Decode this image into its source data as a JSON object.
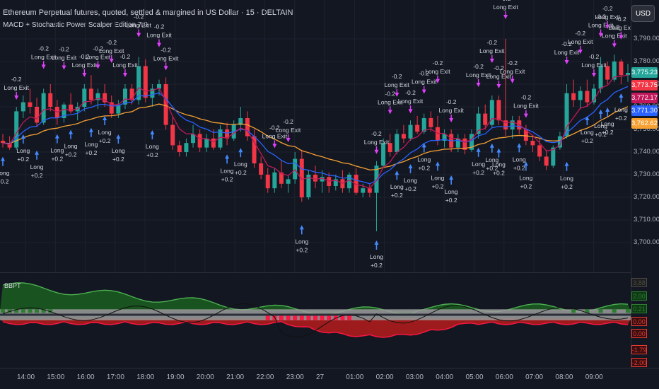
{
  "chart_title": "Ethereum Perpetual futures, quoted, settled & margined in US Dollar · 15 · DELTAIN",
  "indicator_name": "MACD + Stochastic Power Scalper Edition 7.0",
  "currency_button": "USD",
  "sub_indicator": "BBPT",
  "price_ticks": [
    "3,790.00",
    "3,780.00",
    "3,770.00",
    "3,760.00",
    "3,750.00",
    "3,740.00",
    "3,730.00",
    "3,720.00",
    "3,710.00",
    "3,700.00"
  ],
  "price_tags": [
    {
      "label": "3,775.23",
      "color": "#26a69a"
    },
    {
      "label": "3,773.75",
      "color": "#f23645"
    },
    {
      "label": "3,772.17",
      "color": "#c2185b"
    },
    {
      "label": "3,771.30",
      "color": "#2962ff"
    },
    {
      "label": "3,762.62",
      "color": "#f7a133"
    }
  ],
  "osc_tags": [
    {
      "label": "3.88",
      "color": "#4a4a4a",
      "bg": "#1e1e1e"
    },
    {
      "label": "2.00",
      "color": "#2e7d32",
      "bg": "#0e3a14"
    },
    {
      "label": "0.21",
      "color": "#2e7d32",
      "bg": "#0e3a14"
    },
    {
      "label": "0.00",
      "color": "#e53935",
      "bg": "#3a0e0e"
    },
    {
      "label": "0.00",
      "color": "#e53935",
      "bg": "#3a0e0e"
    },
    {
      "label": "-1.79",
      "color": "#e53935",
      "bg": "#3a0e0e"
    },
    {
      "label": "-2.00",
      "color": "#e53935",
      "bg": "#3a0e0e"
    }
  ],
  "time_ticks": [
    "14:00",
    "15:00",
    "16:00",
    "17:00",
    "18:00",
    "19:00",
    "20:00",
    "21:00",
    "22:00",
    "23:00",
    "27",
    "01:00",
    "02:00",
    "03:00",
    "04:00",
    "05:00",
    "06:00",
    "07:00",
    "08:00",
    "09:00"
  ],
  "signals": {
    "exit_label": "Long Exit",
    "exit_value": "-0.2",
    "entry_label": "Long",
    "entry_value": "+0.2"
  },
  "chart_data": {
    "type": "candlestick",
    "symbol": "ETH perpetual",
    "interval": "15",
    "ylim": [
      3700,
      3795
    ],
    "candles": [
      [
        3745,
        3748,
        3742,
        3744
      ],
      [
        3744,
        3747,
        3741,
        3742
      ],
      [
        3742,
        3760,
        3741,
        3758
      ],
      [
        3758,
        3765,
        3755,
        3762
      ],
      [
        3762,
        3768,
        3757,
        3760
      ],
      [
        3760,
        3764,
        3751,
        3753
      ],
      [
        3753,
        3768,
        3752,
        3766
      ],
      [
        3766,
        3770,
        3758,
        3760
      ],
      [
        3760,
        3763,
        3752,
        3755
      ],
      [
        3755,
        3762,
        3753,
        3761
      ],
      [
        3761,
        3766,
        3757,
        3758
      ],
      [
        3758,
        3762,
        3754,
        3760
      ],
      [
        3760,
        3770,
        3758,
        3768
      ],
      [
        3768,
        3774,
        3761,
        3763
      ],
      [
        3763,
        3768,
        3759,
        3766
      ],
      [
        3766,
        3770,
        3760,
        3762
      ],
      [
        3762,
        3765,
        3755,
        3757
      ],
      [
        3757,
        3763,
        3755,
        3761
      ],
      [
        3761,
        3770,
        3759,
        3768
      ],
      [
        3768,
        3770,
        3761,
        3763
      ],
      [
        3763,
        3782,
        3761,
        3778
      ],
      [
        3778,
        3781,
        3762,
        3764
      ],
      [
        3764,
        3770,
        3760,
        3768
      ],
      [
        3768,
        3772,
        3765,
        3770
      ],
      [
        3770,
        3773,
        3750,
        3752
      ],
      [
        3752,
        3756,
        3741,
        3743
      ],
      [
        3743,
        3745,
        3738,
        3740
      ],
      [
        3740,
        3746,
        3738,
        3744
      ],
      [
        3744,
        3752,
        3742,
        3748
      ],
      [
        3748,
        3750,
        3740,
        3742
      ],
      [
        3742,
        3748,
        3740,
        3746
      ],
      [
        3746,
        3750,
        3741,
        3742
      ],
      [
        3742,
        3752,
        3741,
        3750
      ],
      [
        3750,
        3753,
        3743,
        3746
      ],
      [
        3746,
        3754,
        3745,
        3752
      ],
      [
        3752,
        3760,
        3749,
        3755
      ],
      [
        3755,
        3758,
        3745,
        3747
      ],
      [
        3747,
        3750,
        3733,
        3735
      ],
      [
        3735,
        3738,
        3728,
        3730
      ],
      [
        3730,
        3733,
        3722,
        3724
      ],
      [
        3724,
        3733,
        3722,
        3731
      ],
      [
        3731,
        3736,
        3724,
        3726
      ],
      [
        3726,
        3730,
        3722,
        3728
      ],
      [
        3728,
        3740,
        3726,
        3737
      ],
      [
        3737,
        3741,
        3718,
        3720
      ],
      [
        3720,
        3732,
        3719,
        3730
      ],
      [
        3730,
        3734,
        3724,
        3727
      ],
      [
        3727,
        3732,
        3722,
        3729
      ],
      [
        3729,
        3731,
        3722,
        3725
      ],
      [
        3725,
        3730,
        3723,
        3728
      ],
      [
        3728,
        3732,
        3722,
        3724
      ],
      [
        3724,
        3731,
        3722,
        3730
      ],
      [
        3730,
        3733,
        3721,
        3722
      ],
      [
        3722,
        3726,
        3720,
        3724
      ],
      [
        3724,
        3726,
        3720,
        3722
      ],
      [
        3722,
        3736,
        3705,
        3734
      ],
      [
        3734,
        3746,
        3733,
        3744
      ],
      [
        3744,
        3748,
        3738,
        3740
      ],
      [
        3740,
        3750,
        3739,
        3748
      ],
      [
        3748,
        3752,
        3744,
        3746
      ],
      [
        3746,
        3754,
        3745,
        3752
      ],
      [
        3752,
        3756,
        3748,
        3749
      ],
      [
        3749,
        3757,
        3748,
        3755
      ],
      [
        3755,
        3758,
        3749,
        3751
      ],
      [
        3751,
        3756,
        3743,
        3745
      ],
      [
        3745,
        3750,
        3742,
        3748
      ],
      [
        3748,
        3750,
        3740,
        3742
      ],
      [
        3742,
        3748,
        3740,
        3746
      ],
      [
        3746,
        3748,
        3739,
        3741
      ],
      [
        3741,
        3750,
        3740,
        3748
      ],
      [
        3748,
        3760,
        3746,
        3757
      ],
      [
        3757,
        3761,
        3750,
        3752
      ],
      [
        3752,
        3765,
        3751,
        3763
      ],
      [
        3763,
        3765,
        3752,
        3754
      ],
      [
        3754,
        3790,
        3747,
        3750
      ],
      [
        3750,
        3756,
        3746,
        3754
      ],
      [
        3754,
        3756,
        3748,
        3750
      ],
      [
        3750,
        3752,
        3743,
        3745
      ],
      [
        3745,
        3747,
        3740,
        3743
      ],
      [
        3743,
        3746,
        3736,
        3738
      ],
      [
        3738,
        3741,
        3732,
        3734
      ],
      [
        3734,
        3743,
        3733,
        3742
      ],
      [
        3742,
        3749,
        3741,
        3747
      ],
      [
        3747,
        3770,
        3746,
        3766
      ],
      [
        3766,
        3772,
        3760,
        3763
      ],
      [
        3763,
        3769,
        3759,
        3767
      ],
      [
        3767,
        3772,
        3760,
        3762
      ],
      [
        3762,
        3770,
        3761,
        3768
      ],
      [
        3768,
        3782,
        3766,
        3778
      ],
      [
        3778,
        3780,
        3770,
        3772
      ],
      [
        3772,
        3783,
        3771,
        3780
      ],
      [
        3780,
        3781,
        3770,
        3774
      ],
      [
        3774,
        3779,
        3771,
        3775
      ]
    ],
    "oscillator": {
      "name": "BBPT",
      "ylim": [
        -3,
        4
      ],
      "levels": [
        2.0,
        0.21,
        0.0,
        -1.79,
        -2.0
      ]
    }
  }
}
